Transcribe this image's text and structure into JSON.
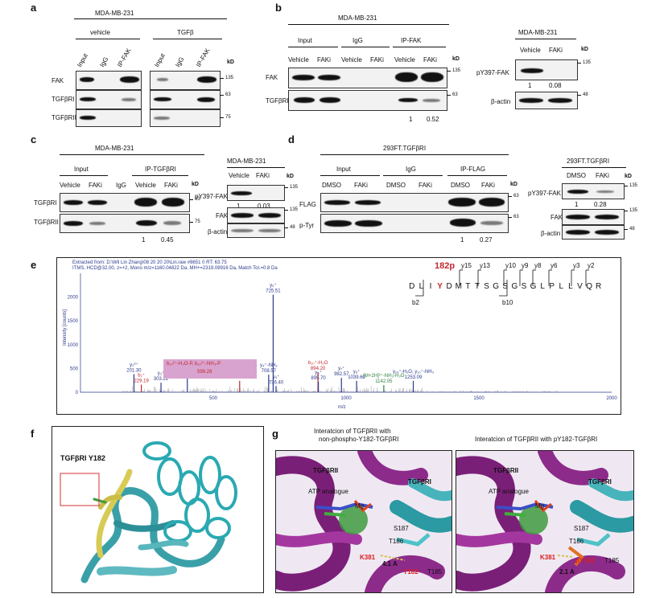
{
  "panels": {
    "a": {
      "label": "a",
      "cell_line": "MDA-MB-231",
      "groups": [
        "vehicle",
        "TGFβ"
      ],
      "lanes": [
        "Input",
        "IgG",
        "IP-FAK",
        "Input",
        "IgG",
        "IP-FAK"
      ],
      "kd": "kD",
      "rows": [
        "FAK",
        "TGFβRI",
        "TGFβRII"
      ],
      "markers": [
        "135",
        "63",
        "75"
      ]
    },
    "b": {
      "label": "b",
      "cell_line": "MDA-MB-231",
      "groups": [
        "Input",
        "IgG",
        "IP-FAK"
      ],
      "lanes": [
        "Vehicle",
        "FAKi",
        "Vehicle",
        "FAKi",
        "Vehicle",
        "FAKi"
      ],
      "kd": "kD",
      "rows": [
        "FAK",
        "TGFβRI"
      ],
      "markers": [
        "135",
        "63"
      ],
      "quant": [
        "1",
        "0.52"
      ],
      "side": {
        "cell_line": "MDA-MB-231",
        "lanes": [
          "Vehicle",
          "FAKi"
        ],
        "kd": "kD",
        "rows": [
          "pY397-FAK",
          "β-actin"
        ],
        "markers": [
          "135",
          "48"
        ],
        "quant": [
          "1",
          "0.08"
        ]
      }
    },
    "c": {
      "label": "c",
      "cell_line": "MDA-MB-231",
      "groups": [
        "Input",
        "IP-TGFβRI"
      ],
      "lanes": [
        "Vehicle",
        "FAKi",
        "IgG",
        "Vehicle",
        "FAKi"
      ],
      "kd": "kD",
      "rows": [
        "TGFβRI",
        "TGFβRII"
      ],
      "markers": [
        "63",
        "75"
      ],
      "quant": [
        "1",
        "0.45"
      ],
      "side": {
        "cell_line": "MDA-MB-231",
        "lanes": [
          "Vehicle",
          "FAKi"
        ],
        "kd": "kD",
        "rows": [
          "pY397-FAK",
          "FAK",
          "β-actin"
        ],
        "markers": [
          "135",
          "135",
          "48"
        ],
        "quant": [
          "1",
          "0.03"
        ]
      }
    },
    "d": {
      "label": "d",
      "cell_line": "293FT.TGFβRI",
      "groups": [
        "Input",
        "IgG",
        "IP-FLAG"
      ],
      "lanes": [
        "DMSO",
        "FAKi",
        "DMSO",
        "FAKi",
        "DMSO",
        "FAKi"
      ],
      "kd": "kD",
      "rows": [
        "FLAG",
        "p-Tyr"
      ],
      "markers": [
        "63",
        "63"
      ],
      "quant": [
        "1",
        "0.27"
      ],
      "side": {
        "cell_line": "293FT.TGFβRI",
        "lanes": [
          "DMSO",
          "FAKi"
        ],
        "kd": "kD",
        "rows": [
          "pY397-FAK",
          "FAK",
          "β-actin"
        ],
        "markers": [
          "135",
          "135",
          "48"
        ],
        "quant": [
          "1",
          "0.28"
        ]
      }
    },
    "e": {
      "label": "e",
      "header1": "Extracted from: D:\\Wil Lin Zhang\\08 20 20 20\\Lin.raw  #8651 0   RT: 63.75",
      "header2": "ITMS, HCD@32.00, z=+2, Mono m/z=1160.04822 Da, MH+=2319.08916 Da, Match Tol.=0.8 Da",
      "ylabel": "Intensity [counts]",
      "xlabel": "m/z",
      "site": "182p",
      "peptide": [
        "D",
        "L",
        "I",
        "Y",
        "D",
        "M",
        "T",
        "T",
        "S",
        "G",
        "S",
        "G",
        "S",
        "G",
        "L",
        "P",
        "L",
        "L",
        "V",
        "Q",
        "R"
      ],
      "ions_top": [
        "y15",
        "y13",
        "y10",
        "y9",
        "y8",
        "y6",
        "y3",
        "y2"
      ],
      "ions_bottom": [
        "b2",
        "b10"
      ],
      "box_label": "b₁₀²⁺-H₃O-P, b₁₀²⁺-NH₃-P",
      "box_value": "599.28"
    },
    "f": {
      "label": "f",
      "title": "TGFβRI Y182"
    },
    "g": {
      "label": "g",
      "title_left_1": "Interatcion of TGFβRII with",
      "title_left_2": "non-phospho-Y182-TGFβRI",
      "title_right": "Interatcion of TGFβRII with pY182-TGFβRI",
      "left": {
        "labels": [
          "TGFβRII",
          "TGFβRI",
          "ATP analogue",
          "Mg",
          "S187",
          "T186",
          "K381",
          "4.1 A",
          "Y182",
          "T185"
        ]
      },
      "right": {
        "labels": [
          "TGFβRII",
          "TGFβRI",
          "ATP analogue",
          "Mg",
          "S187",
          "T186",
          "K381",
          "pY182",
          "T185",
          "2.1 A"
        ]
      }
    }
  },
  "chart_data": {
    "type": "bar",
    "title": "",
    "xlabel": "m/z",
    "ylabel": "Intensity [counts]",
    "xlim": [
      0,
      2000
    ],
    "ylim": [
      0,
      2500
    ],
    "x_ticks": [
      "500",
      "1000",
      "1500",
      "2000"
    ],
    "y_ticks": [
      "0",
      "500",
      "1000",
      "1500",
      "2000"
    ],
    "peaks": [
      {
        "x": 201.3,
        "y": 380,
        "label": "y₂²⁺",
        "value": "201.30",
        "color": "#2b3a8c"
      },
      {
        "x": 229.19,
        "y": 160,
        "label": "b₂⁺",
        "value": "229.19",
        "color": "#c0282d"
      },
      {
        "x": 303.22,
        "y": 200,
        "label": "y₃⁺",
        "value": "303.22",
        "color": "#2b3a8c"
      },
      {
        "x": 402.3,
        "y": 320,
        "label": "y₃⁺",
        "value": "402.30",
        "color": "#2b3a8c"
      },
      {
        "x": 599.28,
        "y": 240,
        "label": "",
        "value": "599.28",
        "color": "#c0282d"
      },
      {
        "x": 708.57,
        "y": 370,
        "label": "y₄⁺-NH₃",
        "value": "708.57",
        "color": "#2b3a8c"
      },
      {
        "x": 725.51,
        "y": 2050,
        "label": "y₅⁺",
        "value": "725.51",
        "color": "#2b3a8c"
      },
      {
        "x": 736.4,
        "y": 130,
        "label": "y₅⁺",
        "value": "736.40",
        "color": "#2b3a8c"
      },
      {
        "x": 894.2,
        "y": 420,
        "label": "b₁₀⁺-H₂O",
        "value": "894.20",
        "color": "#c0282d"
      },
      {
        "x": 895.7,
        "y": 220,
        "label": "y₆⁺",
        "value": "895.70",
        "color": "#2b3a8c"
      },
      {
        "x": 982.57,
        "y": 300,
        "label": "y₇⁺",
        "value": "982.57",
        "color": "#2b3a8c"
      },
      {
        "x": 1039.6,
        "y": 240,
        "label": "y₈⁺",
        "value": "1039.60",
        "color": "#2b3a8c"
      },
      {
        "x": 1142.05,
        "y": 150,
        "label": "[M+2H]²⁺-NH₃-H₃O",
        "value": "1142.05",
        "color": "#2d7d3a"
      },
      {
        "x": 1253.09,
        "y": 240,
        "label": "y₁₀⁺-H₂O, y₁₀⁺-NH₃",
        "value": "1253.09",
        "color": "#2b3a8c"
      }
    ]
  }
}
